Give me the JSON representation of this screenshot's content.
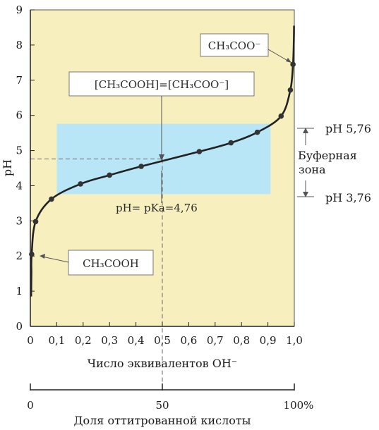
{
  "chart_data": {
    "type": "line",
    "title": "",
    "xlabel": "Число эквивалентов OH⁻",
    "ylabel": "pH",
    "xlim": [
      0,
      1.0
    ],
    "ylim": [
      0,
      9
    ],
    "x_ticks": [
      "0",
      "0,1",
      "0,2",
      "0,3",
      "0,4",
      "0,5",
      "0,6",
      "0,7",
      "0,8",
      "0,9",
      "1,0"
    ],
    "y_ticks": [
      "0",
      "1",
      "2",
      "3",
      "4",
      "5",
      "6",
      "7",
      "8",
      "9"
    ],
    "secondary_axis": {
      "label": "Доля оттитрованной кислоты",
      "ticks": [
        "0",
        "50",
        "100%"
      ]
    },
    "series": [
      {
        "values": [
          {
            "x": 0.005,
            "y": 2.05
          },
          {
            "x": 0.02,
            "y": 2.98
          },
          {
            "x": 0.08,
            "y": 3.62
          },
          {
            "x": 0.19,
            "y": 4.05
          },
          {
            "x": 0.3,
            "y": 4.3
          },
          {
            "x": 0.42,
            "y": 4.55
          },
          {
            "x": 0.64,
            "y": 4.97
          },
          {
            "x": 0.76,
            "y": 5.22
          },
          {
            "x": 0.86,
            "y": 5.52
          },
          {
            "x": 0.95,
            "y": 5.98
          },
          {
            "x": 0.985,
            "y": 6.72
          },
          {
            "x": 0.995,
            "y": 7.45
          }
        ]
      }
    ],
    "buffer_zone": {
      "ph_low": 3.76,
      "ph_high": 5.76,
      "x_from": 0.1,
      "x_to": 0.91
    },
    "midpoint": {
      "x": 0.5,
      "y": 4.76
    },
    "annotations": {
      "top_right": "CH₃COO⁻",
      "equality": "[CH₃COOH]=[CH₃COO⁻]",
      "pka": "pH= pKa=4,76",
      "bottom_left": "CH₃COOH",
      "ph_high": "pH 5,76",
      "ph_low": "pH 3,76",
      "buffer_line1": "Буферная",
      "buffer_line2": "зона"
    },
    "colors": {
      "plot_bg": "#f8efbe",
      "buffer_zone": "#b8e6f7",
      "curve": "#222222",
      "marker": "#333333",
      "annotation_box": "#ffffff"
    },
    "grid": false,
    "legend": "none"
  }
}
